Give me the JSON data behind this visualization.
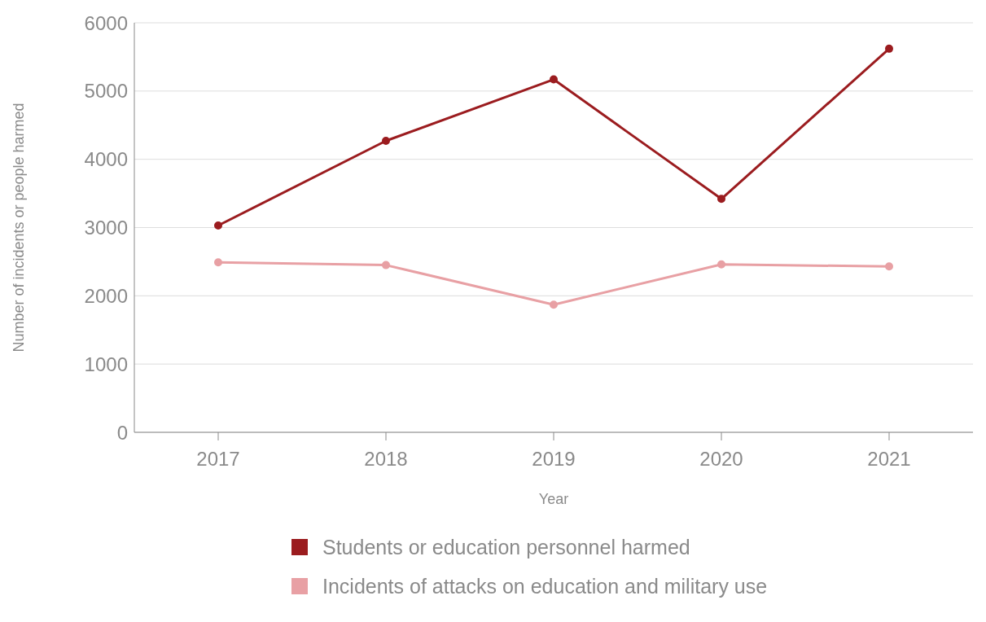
{
  "chart_data": {
    "type": "line",
    "xlabel": "Year",
    "ylabel": "Number of incidents or people harmed",
    "categories": [
      "2017",
      "2018",
      "2019",
      "2020",
      "2021"
    ],
    "series": [
      {
        "name": "Students or education personnel harmed",
        "color": "#9b1c1f",
        "values": [
          3030,
          4270,
          5170,
          3420,
          5620
        ]
      },
      {
        "name": "Incidents of attacks on education and military use",
        "color": "#e8a0a4",
        "values": [
          2490,
          2450,
          1870,
          2460,
          2430
        ]
      }
    ],
    "ylim": [
      0,
      6000
    ],
    "yticks": [
      0,
      1000,
      2000,
      3000,
      4000,
      5000,
      6000
    ],
    "grid": "y",
    "legend": "bottom",
    "marker": "circle",
    "line_style": "solid"
  }
}
